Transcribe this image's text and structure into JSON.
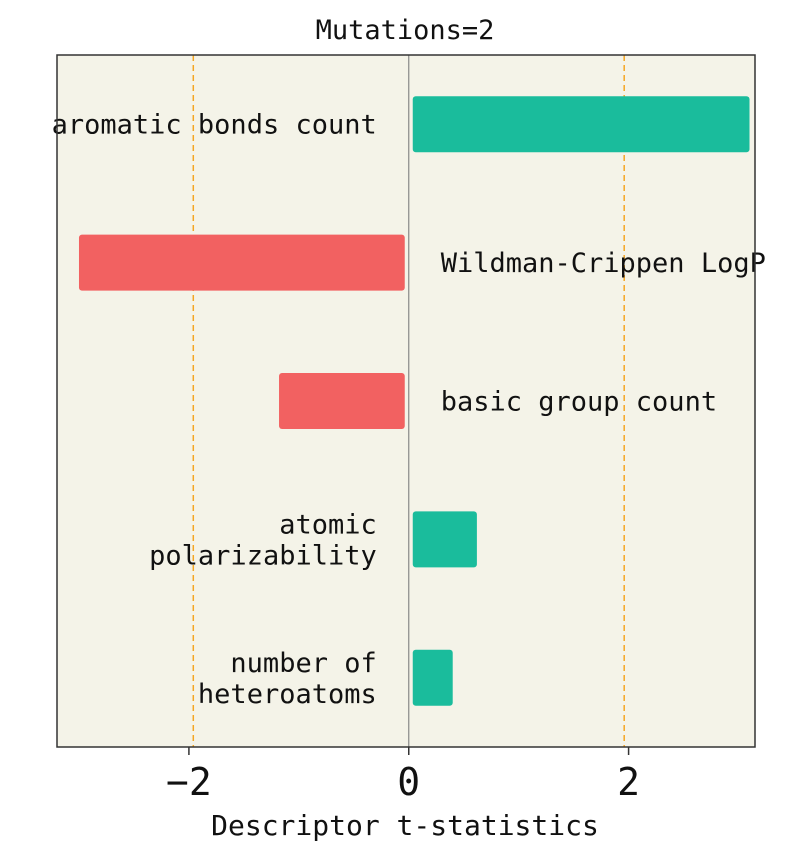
{
  "chart_data": {
    "type": "bar",
    "orientation": "horizontal",
    "title": "Mutations=2",
    "xlabel": "Descriptor t-statistics",
    "ylabel": "",
    "xlim": [
      -3.2,
      3.15
    ],
    "x_ticks": [
      -2,
      0,
      2
    ],
    "x_tick_labels": [
      "−2",
      "0",
      "2"
    ],
    "reference_lines": [
      -1.96,
      1.96
    ],
    "grid": false,
    "categories": [
      [
        "aromatic bonds count"
      ],
      [
        "Wildman-Crippen LogP"
      ],
      [
        "basic group count"
      ],
      [
        "atomic",
        "polarizability"
      ],
      [
        "number of",
        "heteroatoms"
      ]
    ],
    "values": [
      3.1,
      -3.0,
      -1.18,
      0.62,
      0.4
    ],
    "colors": {
      "positive": "#1abc9c",
      "negative": "#f26161",
      "background": "#f4f3e8",
      "reference_line": "#f5a623",
      "zero_line": "#888888",
      "axis": "#333333"
    }
  }
}
